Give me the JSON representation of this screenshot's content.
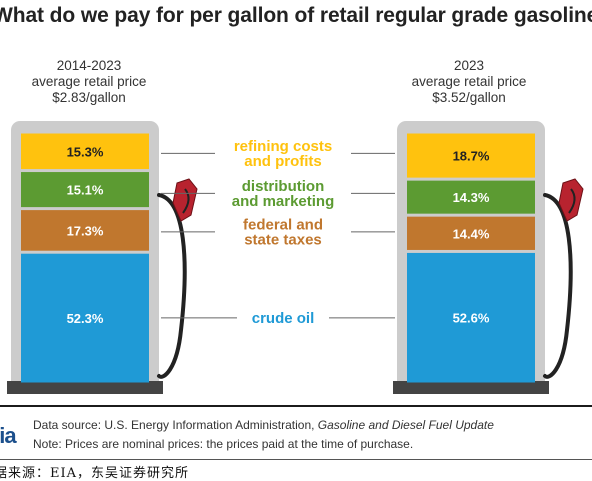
{
  "header": {
    "title": "What do we pay for per gallon of retail regular grade gasoline?"
  },
  "chart_data": {
    "type": "bar",
    "stacked": true,
    "categories": [
      "2014-2023",
      "2023"
    ],
    "captions": [
      {
        "period": "2014-2023",
        "line2": "average retail price",
        "line3": "$2.83/gallon"
      },
      {
        "period": "2023",
        "line2": "average retail price",
        "line3": "$3.52/gallon"
      }
    ],
    "series": [
      {
        "name": "crude oil",
        "values": [
          52.3,
          52.6
        ],
        "labels": [
          "52.3%",
          "52.6%"
        ],
        "color": "#1f9ad6",
        "label_color": "#1f9ad6",
        "text_color": "#ffffff"
      },
      {
        "name": "federal and state taxes",
        "lines": [
          "federal and",
          "state taxes"
        ],
        "values": [
          17.3,
          14.4
        ],
        "labels": [
          "17.3%",
          "14.4%"
        ],
        "color": "#c0772e",
        "label_color": "#c0772e",
        "text_color": "#ffffff"
      },
      {
        "name": "distribution and marketing",
        "lines": [
          "distribution",
          "and marketing"
        ],
        "values": [
          15.1,
          14.3
        ],
        "labels": [
          "15.1%",
          "14.3%"
        ],
        "color": "#5c9b32",
        "label_color": "#5c9b32",
        "text_color": "#ffffff"
      },
      {
        "name": "refining costs and profits",
        "lines": [
          "refining costs",
          "and profits"
        ],
        "values": [
          15.3,
          18.7
        ],
        "labels": [
          "15.3%",
          "18.7%"
        ],
        "color": "#ffc20e",
        "label_color": "#ffc20e",
        "text_color": "#222222"
      }
    ],
    "ylim": [
      0,
      100
    ],
    "pump_color": "#cccccc",
    "base_color": "#444444",
    "nozzle_color": "#b8232f"
  },
  "source": {
    "line1_prefix": "Data source: U.S. Energy Information Administration, ",
    "line1_italic": "Gasoline and Diesel Fuel Update",
    "line2": "Note: Prices are nominal prices: the prices paid at the time of purchase."
  },
  "logo": {
    "text": "eia"
  },
  "footer": {
    "text": "据来源：EIA，东吴证券研究所"
  }
}
